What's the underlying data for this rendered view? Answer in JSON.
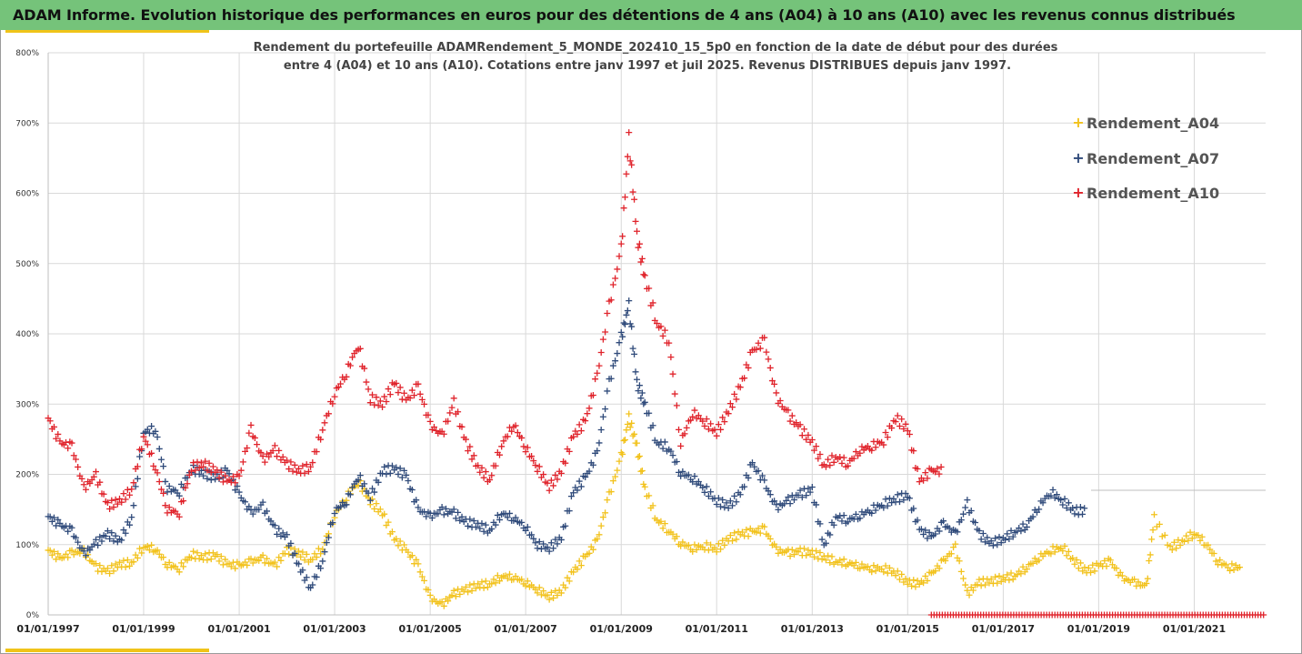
{
  "header": {
    "title": "ADAM Informe. Evolution historique des performances en euros pour des détentions de 4 ans (A04) à 10 ans (A10) avec les revenus connus distribués"
  },
  "colors": {
    "header_bg": "#75c37a",
    "accent": "#f0c419",
    "grid": "#d9d9d9",
    "A04": "#f2c21c",
    "A07": "#2f4a7a",
    "A10": "#e0232b"
  },
  "chart_data": {
    "type": "scatter",
    "marker": "plus",
    "title": "Rendement du portefeuille ADAMRendement_5_MONDE_202410_15_5p0 en fonction de la date de début pour des durées entre 4 (A04) et 10 ans (A10). Cotations entre janv 1997 et juil 2025. Revenus DISTRIBUES depuis janv 1997.",
    "title_lines": [
      "Rendement du portefeuille ADAMRendement_5_MONDE_202410_15_5p0 en fonction de la date de début pour des durées",
      "entre 4 (A04) et 10 ans (A10). Cotations entre janv 1997 et juil 2025. Revenus DISTRIBUES depuis janv 1997."
    ],
    "xlabel": "",
    "ylabel": "",
    "xlim": [
      "1997-01-01",
      "2022-07-01"
    ],
    "ylim": [
      0,
      8
    ],
    "y_format": "percent",
    "x_tick_labels": [
      "01/01/1997",
      "01/01/1999",
      "01/01/2001",
      "01/01/2003",
      "01/01/2005",
      "01/01/2007",
      "01/01/2009",
      "01/01/2011",
      "01/01/2013",
      "01/01/2015",
      "01/01/2017",
      "01/01/2019",
      "01/01/2021"
    ],
    "y_tick_labels": [
      "0%",
      "100%",
      "200%",
      "300%",
      "400%",
      "500%",
      "600%",
      "700%",
      "800%"
    ],
    "grid": true,
    "legend_position": "top-right",
    "series": [
      {
        "name": "Rendement_A04",
        "points": [
          [
            "1997-01-01",
            0.92
          ],
          [
            "1997-04-01",
            0.8
          ],
          [
            "1997-07-01",
            0.88
          ],
          [
            "1997-10-01",
            0.9
          ],
          [
            "1998-01-01",
            0.68
          ],
          [
            "1998-04-01",
            0.62
          ],
          [
            "1998-07-01",
            0.72
          ],
          [
            "1998-10-01",
            0.74
          ],
          [
            "1999-01-01",
            0.97
          ],
          [
            "1999-04-01",
            0.94
          ],
          [
            "1999-07-01",
            0.72
          ],
          [
            "1999-10-01",
            0.66
          ],
          [
            "2000-01-01",
            0.86
          ],
          [
            "2000-04-01",
            0.82
          ],
          [
            "2000-07-01",
            0.85
          ],
          [
            "2000-10-01",
            0.72
          ],
          [
            "2001-01-01",
            0.7
          ],
          [
            "2001-04-01",
            0.76
          ],
          [
            "2001-07-01",
            0.8
          ],
          [
            "2001-10-01",
            0.7
          ],
          [
            "2002-01-01",
            0.92
          ],
          [
            "2002-04-01",
            0.88
          ],
          [
            "2002-07-01",
            0.78
          ],
          [
            "2002-10-01",
            0.95
          ],
          [
            "2003-01-01",
            1.42
          ],
          [
            "2003-04-01",
            1.68
          ],
          [
            "2003-07-01",
            1.9
          ],
          [
            "2003-10-01",
            1.62
          ],
          [
            "2004-01-01",
            1.45
          ],
          [
            "2004-04-01",
            1.08
          ],
          [
            "2004-07-01",
            0.92
          ],
          [
            "2004-10-01",
            0.7
          ],
          [
            "2005-01-01",
            0.24
          ],
          [
            "2005-04-01",
            0.14
          ],
          [
            "2005-07-01",
            0.3
          ],
          [
            "2005-10-01",
            0.36
          ],
          [
            "2006-01-01",
            0.42
          ],
          [
            "2006-04-01",
            0.44
          ],
          [
            "2006-07-01",
            0.55
          ],
          [
            "2006-10-01",
            0.54
          ],
          [
            "2007-01-01",
            0.46
          ],
          [
            "2007-04-01",
            0.36
          ],
          [
            "2007-07-01",
            0.26
          ],
          [
            "2007-10-01",
            0.34
          ],
          [
            "2008-01-01",
            0.62
          ],
          [
            "2008-04-01",
            0.82
          ],
          [
            "2008-07-01",
            1.05
          ],
          [
            "2008-10-01",
            1.7
          ],
          [
            "2009-01-01",
            2.25
          ],
          [
            "2009-03-01",
            2.8
          ],
          [
            "2009-05-01",
            2.4
          ],
          [
            "2009-07-01",
            1.8
          ],
          [
            "2009-10-01",
            1.35
          ],
          [
            "2010-01-01",
            1.2
          ],
          [
            "2010-04-01",
            1.02
          ],
          [
            "2010-07-01",
            0.95
          ],
          [
            "2010-10-01",
            0.98
          ],
          [
            "2011-01-01",
            0.94
          ],
          [
            "2011-04-01",
            1.08
          ],
          [
            "2011-07-01",
            1.15
          ],
          [
            "2011-10-01",
            1.18
          ],
          [
            "2012-01-01",
            1.22
          ],
          [
            "2012-04-01",
            0.92
          ],
          [
            "2012-07-01",
            0.88
          ],
          [
            "2012-10-01",
            0.9
          ],
          [
            "2013-01-01",
            0.88
          ],
          [
            "2013-04-01",
            0.82
          ],
          [
            "2013-07-01",
            0.76
          ],
          [
            "2013-10-01",
            0.74
          ],
          [
            "2014-01-01",
            0.7
          ],
          [
            "2014-04-01",
            0.66
          ],
          [
            "2014-07-01",
            0.66
          ],
          [
            "2014-10-01",
            0.6
          ],
          [
            "2015-01-01",
            0.46
          ],
          [
            "2015-04-01",
            0.44
          ],
          [
            "2015-07-01",
            0.58
          ],
          [
            "2015-10-01",
            0.76
          ],
          [
            "2016-01-01",
            0.96
          ],
          [
            "2016-04-01",
            0.3
          ],
          [
            "2016-07-01",
            0.46
          ],
          [
            "2016-10-01",
            0.48
          ],
          [
            "2017-01-01",
            0.52
          ],
          [
            "2017-04-01",
            0.56
          ],
          [
            "2017-07-01",
            0.68
          ],
          [
            "2017-10-01",
            0.82
          ],
          [
            "2018-01-01",
            0.92
          ],
          [
            "2018-04-01",
            0.96
          ],
          [
            "2018-07-01",
            0.76
          ],
          [
            "2018-10-01",
            0.62
          ],
          [
            "2019-01-01",
            0.7
          ],
          [
            "2019-04-01",
            0.76
          ],
          [
            "2019-07-01",
            0.52
          ],
          [
            "2019-10-01",
            0.46
          ],
          [
            "2020-01-01",
            0.4
          ],
          [
            "2020-03-01",
            1.38
          ],
          [
            "2020-07-01",
            0.95
          ],
          [
            "2020-10-01",
            1.05
          ],
          [
            "2021-01-01",
            1.16
          ],
          [
            "2021-04-01",
            1.02
          ],
          [
            "2021-07-01",
            0.76
          ],
          [
            "2021-10-01",
            0.68
          ]
        ]
      },
      {
        "name": "Rendement_A07",
        "points": [
          [
            "1997-01-01",
            1.4
          ],
          [
            "1997-04-01",
            1.28
          ],
          [
            "1997-07-01",
            1.2
          ],
          [
            "1997-10-01",
            0.86
          ],
          [
            "1998-01-01",
            1.02
          ],
          [
            "1998-04-01",
            1.15
          ],
          [
            "1998-07-01",
            1.05
          ],
          [
            "1998-10-01",
            1.38
          ],
          [
            "1999-01-01",
            2.6
          ],
          [
            "1999-04-01",
            2.65
          ],
          [
            "1999-07-01",
            1.8
          ],
          [
            "1999-10-01",
            1.75
          ],
          [
            "2000-01-01",
            2.08
          ],
          [
            "2000-04-01",
            2.02
          ],
          [
            "2000-07-01",
            1.95
          ],
          [
            "2000-10-01",
            2.05
          ],
          [
            "2001-01-01",
            1.72
          ],
          [
            "2001-04-01",
            1.45
          ],
          [
            "2001-07-01",
            1.55
          ],
          [
            "2001-10-01",
            1.22
          ],
          [
            "2002-01-01",
            1.1
          ],
          [
            "2002-04-01",
            0.7
          ],
          [
            "2002-07-01",
            0.38
          ],
          [
            "2002-10-01",
            0.78
          ],
          [
            "2003-01-01",
            1.48
          ],
          [
            "2003-04-01",
            1.62
          ],
          [
            "2003-07-01",
            1.98
          ],
          [
            "2003-10-01",
            1.68
          ],
          [
            "2004-01-01",
            2.05
          ],
          [
            "2004-04-01",
            2.08
          ],
          [
            "2004-07-01",
            1.98
          ],
          [
            "2004-10-01",
            1.5
          ],
          [
            "2005-01-01",
            1.4
          ],
          [
            "2005-04-01",
            1.48
          ],
          [
            "2005-07-01",
            1.45
          ],
          [
            "2005-10-01",
            1.32
          ],
          [
            "2006-01-01",
            1.28
          ],
          [
            "2006-04-01",
            1.2
          ],
          [
            "2006-07-01",
            1.45
          ],
          [
            "2006-10-01",
            1.38
          ],
          [
            "2007-01-01",
            1.25
          ],
          [
            "2007-04-01",
            1.0
          ],
          [
            "2007-07-01",
            0.95
          ],
          [
            "2007-10-01",
            1.1
          ],
          [
            "2008-01-01",
            1.75
          ],
          [
            "2008-04-01",
            1.95
          ],
          [
            "2008-07-01",
            2.3
          ],
          [
            "2008-10-01",
            3.3
          ],
          [
            "2009-01-01",
            3.95
          ],
          [
            "2009-03-01",
            4.4
          ],
          [
            "2009-05-01",
            3.3
          ],
          [
            "2009-07-01",
            3.0
          ],
          [
            "2009-10-01",
            2.45
          ],
          [
            "2010-01-01",
            2.38
          ],
          [
            "2010-04-01",
            2.02
          ],
          [
            "2010-07-01",
            1.95
          ],
          [
            "2010-10-01",
            1.8
          ],
          [
            "2011-01-01",
            1.62
          ],
          [
            "2011-04-01",
            1.55
          ],
          [
            "2011-07-01",
            1.72
          ],
          [
            "2011-10-01",
            2.15
          ],
          [
            "2012-01-01",
            1.88
          ],
          [
            "2012-04-01",
            1.52
          ],
          [
            "2012-07-01",
            1.62
          ],
          [
            "2012-10-01",
            1.72
          ],
          [
            "2013-01-01",
            1.78
          ],
          [
            "2013-04-01",
            0.98
          ],
          [
            "2013-07-01",
            1.4
          ],
          [
            "2013-10-01",
            1.35
          ],
          [
            "2014-01-01",
            1.42
          ],
          [
            "2014-04-01",
            1.5
          ],
          [
            "2014-07-01",
            1.58
          ],
          [
            "2014-10-01",
            1.65
          ],
          [
            "2015-01-01",
            1.7
          ],
          [
            "2015-04-01",
            1.22
          ],
          [
            "2015-07-01",
            1.1
          ],
          [
            "2015-10-01",
            1.3
          ],
          [
            "2016-01-01",
            1.15
          ],
          [
            "2016-04-01",
            1.58
          ],
          [
            "2016-07-01",
            1.15
          ],
          [
            "2016-10-01",
            1.02
          ],
          [
            "2017-01-01",
            1.08
          ],
          [
            "2017-04-01",
            1.18
          ],
          [
            "2017-07-01",
            1.28
          ],
          [
            "2017-10-01",
            1.55
          ],
          [
            "2018-01-01",
            1.75
          ],
          [
            "2018-04-01",
            1.62
          ],
          [
            "2018-07-01",
            1.48
          ]
        ]
      },
      {
        "name": "Rendement_A10",
        "points": [
          [
            "1997-01-01",
            2.8
          ],
          [
            "1997-04-01",
            2.45
          ],
          [
            "1997-07-01",
            2.4
          ],
          [
            "1997-10-01",
            1.8
          ],
          [
            "1998-01-01",
            1.98
          ],
          [
            "1998-04-01",
            1.55
          ],
          [
            "1998-07-01",
            1.62
          ],
          [
            "1998-10-01",
            1.78
          ],
          [
            "1999-01-01",
            2.55
          ],
          [
            "1999-04-01",
            2.1
          ],
          [
            "1999-07-01",
            1.5
          ],
          [
            "1999-10-01",
            1.45
          ],
          [
            "2000-01-01",
            2.1
          ],
          [
            "2000-04-01",
            2.15
          ],
          [
            "2000-07-01",
            2.05
          ],
          [
            "2000-10-01",
            1.9
          ],
          [
            "2001-01-01",
            1.95
          ],
          [
            "2001-04-01",
            2.65
          ],
          [
            "2001-07-01",
            2.2
          ],
          [
            "2001-10-01",
            2.35
          ],
          [
            "2002-01-01",
            2.15
          ],
          [
            "2002-04-01",
            2.05
          ],
          [
            "2002-07-01",
            2.1
          ],
          [
            "2002-10-01",
            2.65
          ],
          [
            "2003-01-01",
            3.15
          ],
          [
            "2003-04-01",
            3.45
          ],
          [
            "2003-07-01",
            3.85
          ],
          [
            "2003-10-01",
            3.08
          ],
          [
            "2004-01-01",
            3.0
          ],
          [
            "2004-04-01",
            3.3
          ],
          [
            "2004-07-01",
            3.05
          ],
          [
            "2004-10-01",
            3.25
          ],
          [
            "2005-01-01",
            2.7
          ],
          [
            "2005-04-01",
            2.55
          ],
          [
            "2005-07-01",
            3.02
          ],
          [
            "2005-10-01",
            2.45
          ],
          [
            "2006-01-01",
            2.1
          ],
          [
            "2006-04-01",
            1.92
          ],
          [
            "2006-07-01",
            2.42
          ],
          [
            "2006-10-01",
            2.72
          ],
          [
            "2007-01-01",
            2.38
          ],
          [
            "2007-04-01",
            2.1
          ],
          [
            "2007-07-01",
            1.82
          ],
          [
            "2007-10-01",
            2.05
          ],
          [
            "2008-01-01",
            2.55
          ],
          [
            "2008-04-01",
            2.75
          ],
          [
            "2008-07-01",
            3.4
          ],
          [
            "2008-10-01",
            4.4
          ],
          [
            "2009-01-01",
            5.2
          ],
          [
            "2009-03-01",
            6.78
          ],
          [
            "2009-05-01",
            5.4
          ],
          [
            "2009-07-01",
            4.8
          ],
          [
            "2009-10-01",
            4.15
          ],
          [
            "2010-01-01",
            3.9
          ],
          [
            "2010-04-01",
            2.45
          ],
          [
            "2010-07-01",
            2.88
          ],
          [
            "2010-10-01",
            2.75
          ],
          [
            "2011-01-01",
            2.6
          ],
          [
            "2011-04-01",
            2.9
          ],
          [
            "2011-07-01",
            3.25
          ],
          [
            "2011-10-01",
            3.75
          ],
          [
            "2012-01-01",
            3.9
          ],
          [
            "2012-04-01",
            3.1
          ],
          [
            "2012-07-01",
            2.85
          ],
          [
            "2012-10-01",
            2.65
          ],
          [
            "2013-01-01",
            2.45
          ],
          [
            "2013-04-01",
            2.12
          ],
          [
            "2013-07-01",
            2.25
          ],
          [
            "2013-10-01",
            2.15
          ],
          [
            "2014-01-01",
            2.35
          ],
          [
            "2014-04-01",
            2.4
          ],
          [
            "2014-07-01",
            2.48
          ],
          [
            "2014-10-01",
            2.8
          ],
          [
            "2015-01-01",
            2.65
          ],
          [
            "2015-04-01",
            1.9
          ],
          [
            "2015-07-01",
            2.05
          ]
        ]
      }
    ],
    "trailing_zero_markers": {
      "series": "Rendement_A10",
      "from": "2015-07-01",
      "to": "2022-07-01",
      "value": 0
    }
  }
}
